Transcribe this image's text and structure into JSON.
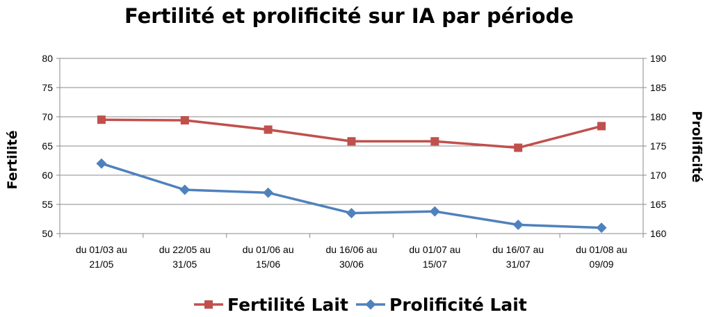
{
  "chart_data": {
    "type": "line",
    "title": "Fertilité et prolificité sur IA par période",
    "categories": [
      [
        "du 01/03 au",
        "21/05"
      ],
      [
        "du 22/05 au",
        "31/05"
      ],
      [
        "du 01/06 au",
        "15/06"
      ],
      [
        "du 16/06 au",
        "30/06"
      ],
      [
        "du 01/07 au",
        "15/07"
      ],
      [
        "du 16/07 au",
        "31/07"
      ],
      [
        "du 01/08 au",
        "09/09"
      ]
    ],
    "y_left": {
      "label": "Fertilité",
      "min": 50,
      "max": 80,
      "step": 5,
      "ticks": [
        "50",
        "55",
        "60",
        "65",
        "70",
        "75",
        "80"
      ]
    },
    "y_right": {
      "label": "Prolificité",
      "min": 160,
      "max": 190,
      "step": 5,
      "ticks": [
        "160",
        "165",
        "170",
        "175",
        "180",
        "185",
        "190"
      ]
    },
    "series": [
      {
        "name": "Fertilité Lait",
        "axis": "left",
        "color": "#C0504D",
        "marker": "square",
        "values": [
          69.5,
          69.4,
          67.8,
          65.8,
          65.8,
          64.7,
          68.4
        ]
      },
      {
        "name": "Prolificité Lait",
        "axis": "right",
        "color": "#4F81BD",
        "marker": "diamond",
        "values": [
          172.0,
          167.5,
          167.0,
          163.5,
          163.8,
          161.5,
          161.0
        ]
      }
    ],
    "grid": true,
    "legend_position": "bottom"
  }
}
